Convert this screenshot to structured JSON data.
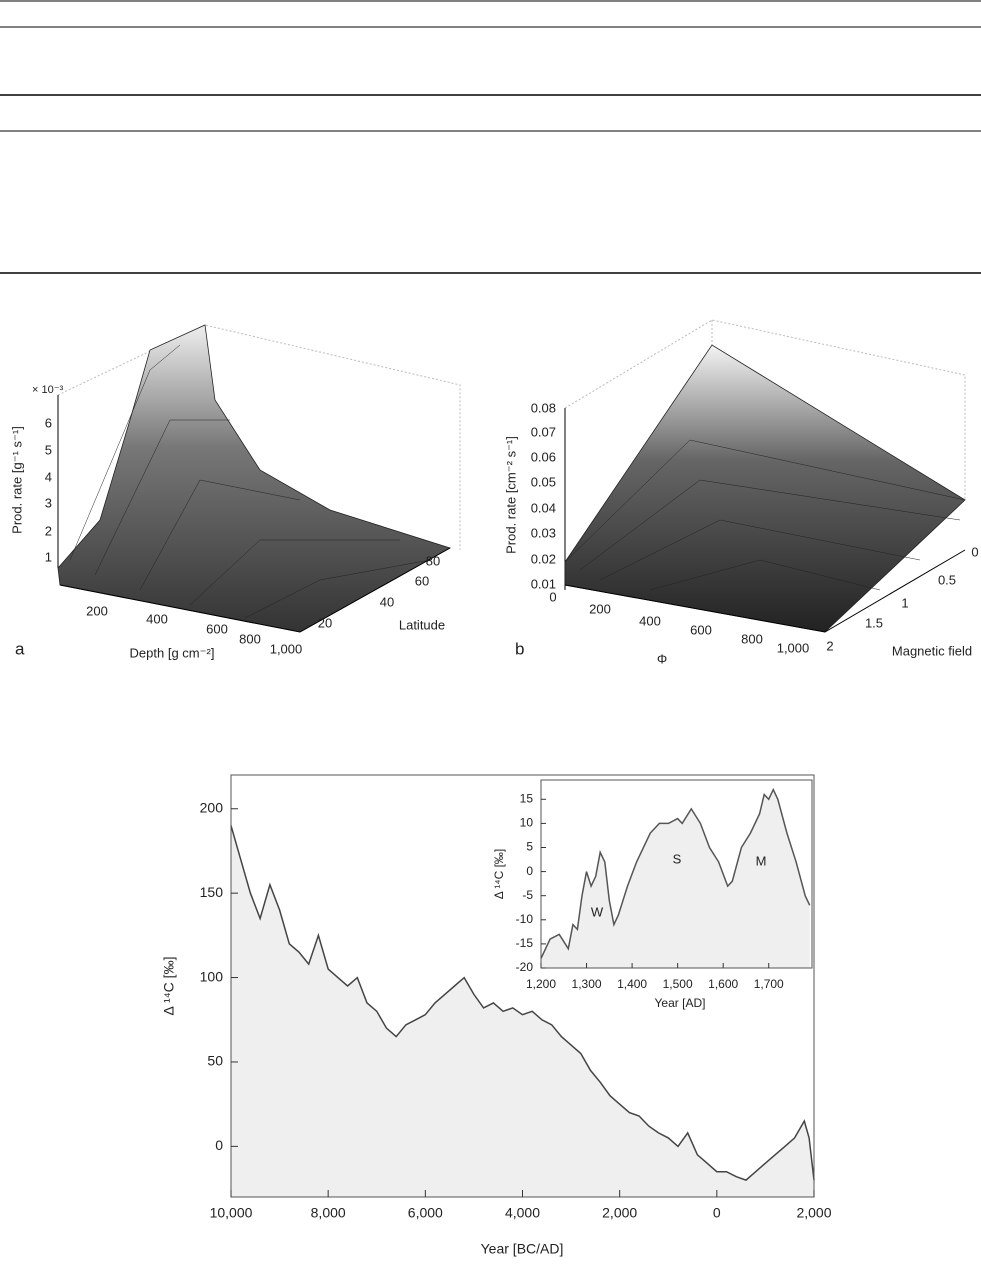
{
  "figure_a": {
    "panel_label": "a",
    "z_multiplier": "× 10⁻³",
    "z_label": "Prod. rate [g⁻¹ s⁻¹]",
    "z_ticks": [
      "1",
      "2",
      "3",
      "4",
      "5",
      "6"
    ],
    "x_label": "Depth [g cm⁻²]",
    "x_ticks": [
      "200",
      "400",
      "600",
      "800",
      "1,000"
    ],
    "y_label": "Latitude",
    "y_ticks": [
      "20",
      "40",
      "60",
      "80"
    ]
  },
  "figure_b": {
    "panel_label": "b",
    "z_label": "Prod. rate [cm⁻² s⁻¹]",
    "z_ticks": [
      "0.08",
      "0.07",
      "0.06",
      "0.05",
      "0.04",
      "0.03",
      "0.02",
      "0.01"
    ],
    "x_label": "Φ",
    "x_ticks": [
      "0",
      "200",
      "400",
      "600",
      "800",
      "1,000"
    ],
    "y_label": "Magnetic field",
    "y_ticks": [
      "0",
      "0.5",
      "1",
      "1.5",
      "2"
    ]
  },
  "chart_data": [
    {
      "type": "area",
      "x_label": "Year [BC/AD]",
      "y_label": "Δ ¹⁴C [‰]",
      "color": "#444444",
      "fill_color": "#efefef",
      "x": [
        -10000,
        -9800,
        -9600,
        -9400,
        -9200,
        -9000,
        -8800,
        -8600,
        -8400,
        -8200,
        -8000,
        -7800,
        -7600,
        -7400,
        -7200,
        -7000,
        -6800,
        -6600,
        -6400,
        -6200,
        -6000,
        -5800,
        -5600,
        -5400,
        -5200,
        -5000,
        -4800,
        -4600,
        -4400,
        -4200,
        -4000,
        -3800,
        -3600,
        -3400,
        -3200,
        -3000,
        -2800,
        -2600,
        -2400,
        -2200,
        -2000,
        -1800,
        -1600,
        -1400,
        -1200,
        -1000,
        -800,
        -600,
        -400,
        -200,
        0,
        200,
        400,
        600,
        800,
        1000,
        1200,
        1400,
        1600,
        1800,
        1900,
        2000
      ],
      "values": [
        190,
        170,
        150,
        135,
        155,
        140,
        120,
        115,
        108,
        125,
        105,
        100,
        95,
        100,
        85,
        80,
        70,
        65,
        72,
        75,
        78,
        85,
        90,
        95,
        100,
        90,
        82,
        85,
        80,
        82,
        78,
        80,
        75,
        72,
        65,
        60,
        55,
        45,
        38,
        30,
        25,
        20,
        18,
        12,
        8,
        5,
        0,
        8,
        -5,
        -10,
        -15,
        -15,
        -18,
        -20,
        -15,
        -10,
        -5,
        0,
        5,
        15,
        5,
        -20
      ],
      "xlim": [
        -10000,
        2000
      ],
      "ylim": [
        -30,
        220
      ],
      "xticks": [
        {
          "value": -10000,
          "label": "10,000"
        },
        {
          "value": -8000,
          "label": "8,000"
        },
        {
          "value": -6000,
          "label": "6,000"
        },
        {
          "value": -4000,
          "label": "4,000"
        },
        {
          "value": -2000,
          "label": "2,000"
        },
        0,
        {
          "value": 2000,
          "label": "2,000"
        }
      ],
      "yticks": [
        0,
        50,
        100,
        150,
        200
      ]
    },
    {
      "type": "area",
      "x_label": "Year [AD]",
      "y_label": "Δ ¹⁴C [‰]",
      "color": "#555555",
      "fill_color": "#efefef",
      "x": [
        1200,
        1220,
        1240,
        1260,
        1270,
        1280,
        1290,
        1300,
        1310,
        1320,
        1330,
        1340,
        1350,
        1360,
        1370,
        1390,
        1410,
        1440,
        1460,
        1480,
        1500,
        1510,
        1530,
        1550,
        1570,
        1590,
        1610,
        1620,
        1640,
        1660,
        1680,
        1690,
        1700,
        1710,
        1720,
        1740,
        1760,
        1780,
        1790
      ],
      "values": [
        -18,
        -14,
        -13,
        -16,
        -11,
        -12,
        -5,
        0,
        -3,
        -1,
        4,
        2,
        -6,
        -11,
        -9,
        -3,
        2,
        8,
        10,
        10,
        11,
        10,
        13,
        10,
        5,
        2,
        -3,
        -2,
        5,
        8,
        12,
        16,
        15,
        17,
        15,
        8,
        2,
        -5,
        -7
      ],
      "xlim": [
        1200,
        1795
      ],
      "ylim": [
        -20,
        19
      ],
      "xticks": [
        {
          "value": 1200,
          "label": "1,200"
        },
        {
          "value": 1300,
          "label": "1,300"
        },
        {
          "value": 1400,
          "label": "1,400"
        },
        {
          "value": 1500,
          "label": "1,500"
        },
        {
          "value": 1600,
          "label": "1,600"
        },
        {
          "value": 1700,
          "label": "1,700"
        }
      ],
      "yticks": [
        -20,
        -15,
        -10,
        -5,
        0,
        5,
        10,
        15
      ],
      "annotations": [
        "W",
        "S",
        "M"
      ]
    }
  ]
}
